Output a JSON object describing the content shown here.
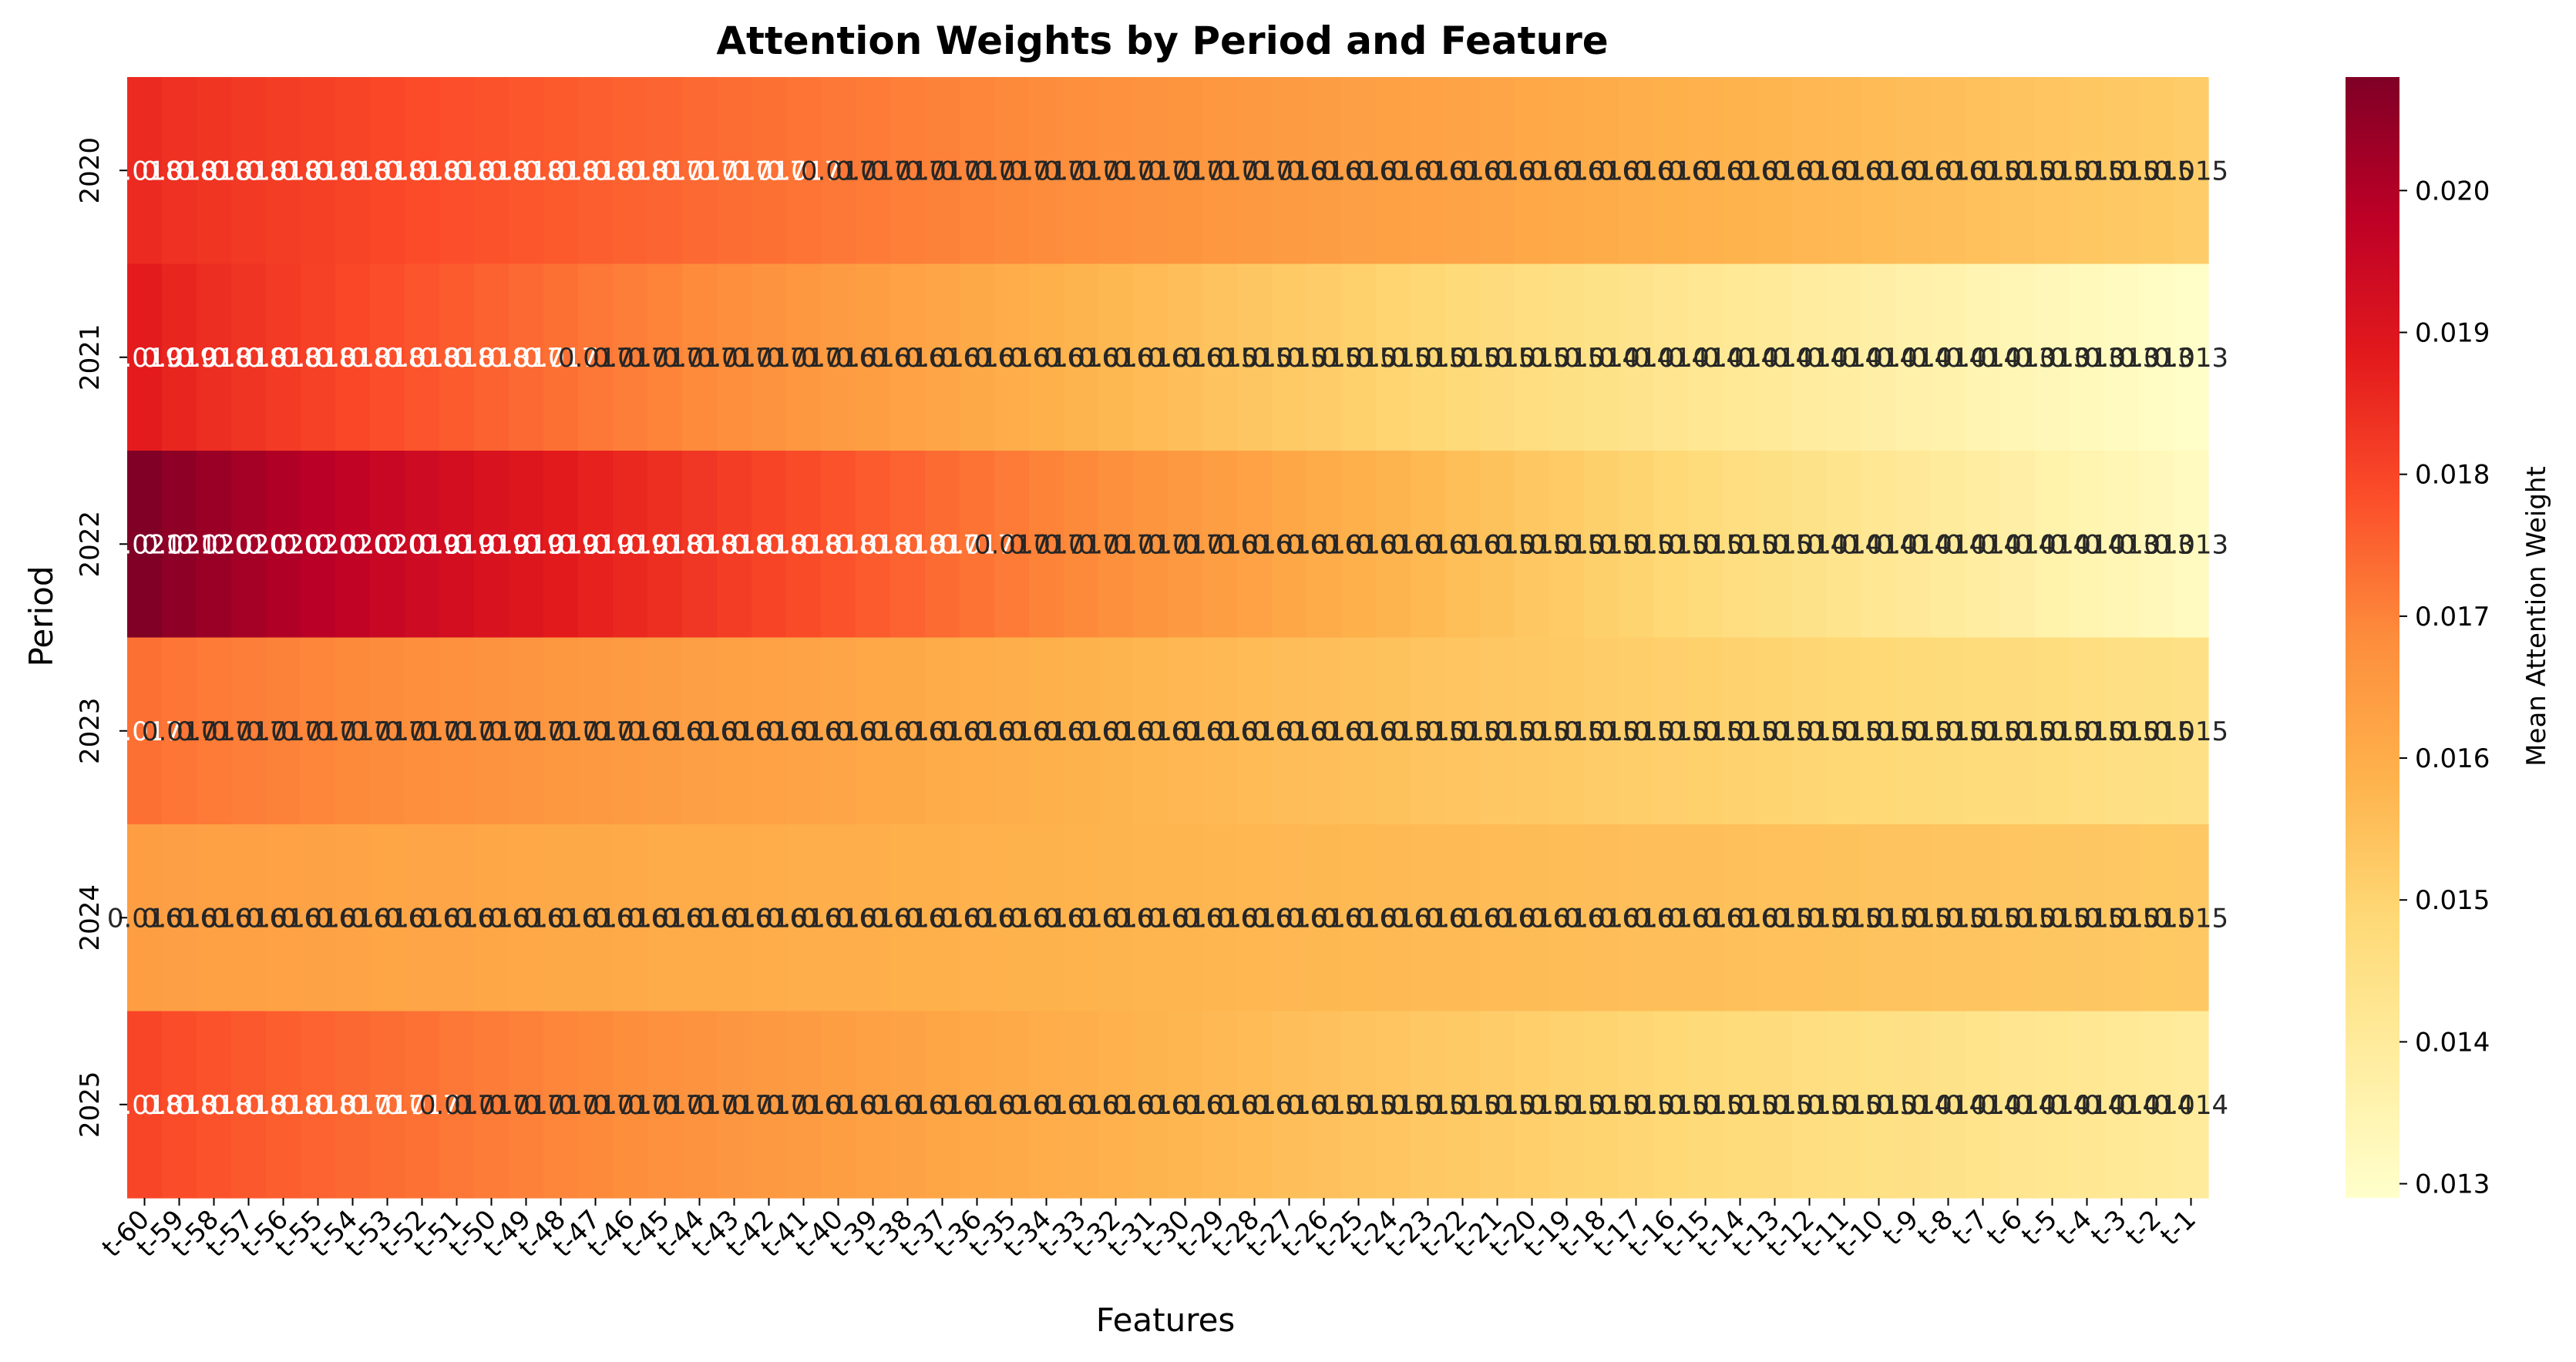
{
  "chart_data": {
    "type": "heatmap",
    "title": "Attention Weights by Period and Feature",
    "xlabel": "Features",
    "ylabel": "Period",
    "colorbar_label": "Mean Attention Weight",
    "colormap": "YlOrRd",
    "colormap_stops": [
      "#ffffcc",
      "#ffeda0",
      "#fed976",
      "#feb24c",
      "#fd8d3c",
      "#fc4e2a",
      "#e31a1c",
      "#bd0026",
      "#800026"
    ],
    "vmin": 0.0129,
    "vmax": 0.0208,
    "colorbar_ticks": [
      "0.013",
      "0.014",
      "0.015",
      "0.016",
      "0.017",
      "0.018",
      "0.019",
      "0.020"
    ],
    "annotation_format": "3 significant decimals",
    "x": [
      "t-60",
      "t-59",
      "t-58",
      "t-57",
      "t-56",
      "t-55",
      "t-54",
      "t-53",
      "t-52",
      "t-51",
      "t-50",
      "t-49",
      "t-48",
      "t-47",
      "t-46",
      "t-45",
      "t-44",
      "t-43",
      "t-42",
      "t-41",
      "t-40",
      "t-39",
      "t-38",
      "t-37",
      "t-36",
      "t-35",
      "t-34",
      "t-33",
      "t-32",
      "t-31",
      "t-30",
      "t-29",
      "t-28",
      "t-27",
      "t-26",
      "t-25",
      "t-24",
      "t-23",
      "t-22",
      "t-21",
      "t-20",
      "t-19",
      "t-18",
      "t-17",
      "t-16",
      "t-15",
      "t-14",
      "t-13",
      "t-12",
      "t-11",
      "t-10",
      "t-9",
      "t-8",
      "t-7",
      "t-6",
      "t-5",
      "t-4",
      "t-3",
      "t-2",
      "t-1"
    ],
    "y": [
      "2020",
      "2021",
      "2022",
      "2023",
      "2024",
      "2025"
    ],
    "series": [
      {
        "name": "2020",
        "start": 0.0185,
        "end": 0.0152
      },
      {
        "name": "2021",
        "start": 0.0188,
        "end": 0.013
      },
      {
        "name": "2022",
        "start": 0.0208,
        "end": 0.0132
      },
      {
        "name": "2023",
        "start": 0.0173,
        "end": 0.0145
      },
      {
        "name": "2024",
        "start": 0.0164,
        "end": 0.0153
      },
      {
        "name": "2025",
        "start": 0.018,
        "end": 0.014
      }
    ]
  }
}
